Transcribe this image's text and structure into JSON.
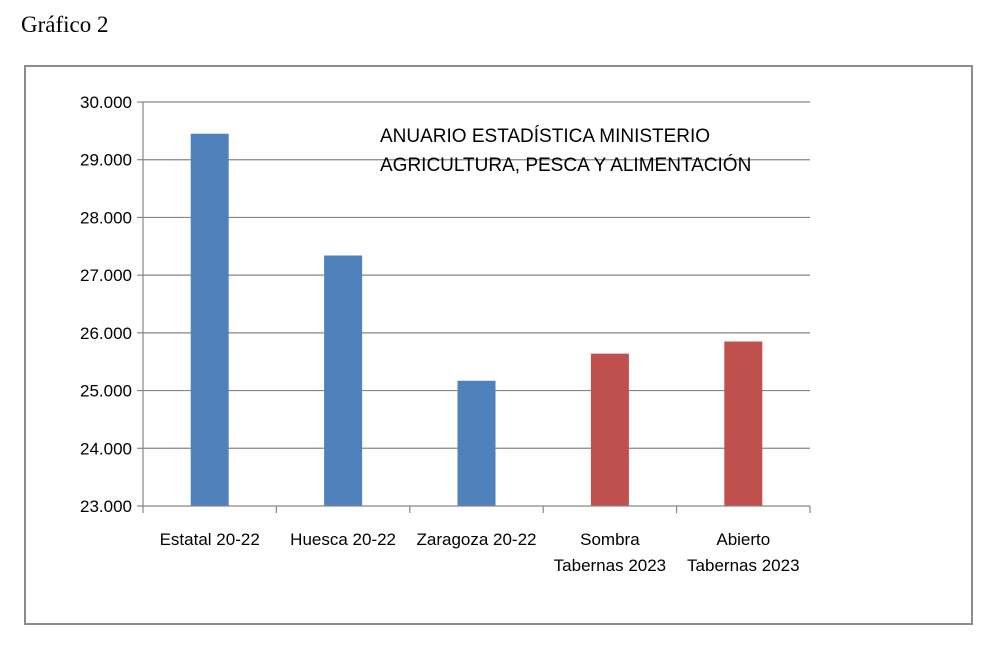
{
  "caption": "Gráfico 2",
  "chart_data": {
    "type": "bar",
    "categories": [
      [
        "Estatal 20-22"
      ],
      [
        "Huesca 20-22"
      ],
      [
        "Zaragoza 20-22"
      ],
      [
        "Sombra",
        "Tabernas 2023"
      ],
      [
        "Abierto",
        "Tabernas 2023"
      ]
    ],
    "values": [
      29450,
      27340,
      25170,
      25640,
      25850
    ],
    "bar_colors": [
      "#4f81bd",
      "#4f81bd",
      "#4f81bd",
      "#c0504d",
      "#c0504d"
    ],
    "ylim": [
      23000,
      30000
    ],
    "yticks": [
      23000,
      24000,
      25000,
      26000,
      27000,
      28000,
      29000,
      30000
    ],
    "ytick_labels": [
      "23.000",
      "24.000",
      "25.000",
      "26.000",
      "27.000",
      "28.000",
      "29.000",
      "30.000"
    ],
    "grid": true,
    "annotation": [
      "ANUARIO ESTADÍSTICA MINISTERIO",
      "AGRICULTURA, PESCA Y ALIMENTACIÓN"
    ]
  }
}
